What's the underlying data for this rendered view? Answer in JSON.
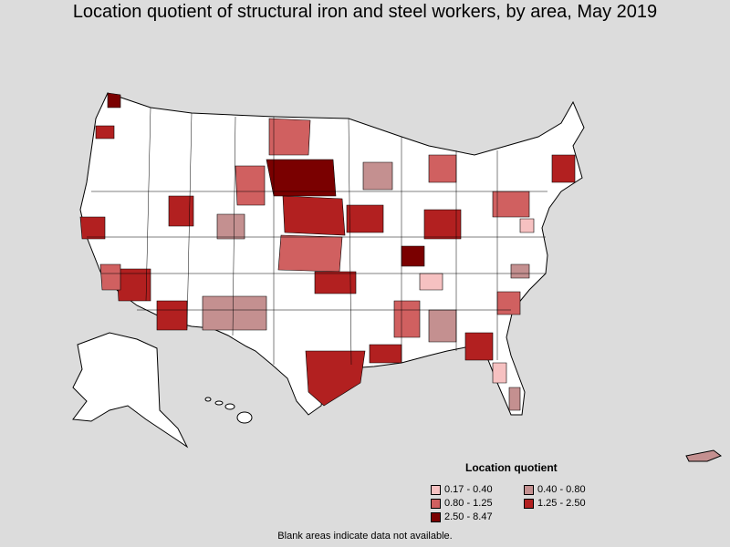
{
  "title": "Location quotient of structural iron and steel workers, by area, May 2019",
  "legend": {
    "title": "Location quotient",
    "items": [
      {
        "label": "0.17 - 0.40",
        "color": "#f6c1c1"
      },
      {
        "label": "0.40 - 0.80",
        "color": "#c49090"
      },
      {
        "label": "0.80 - 1.25",
        "color": "#d06060"
      },
      {
        "label": "1.25 - 2.50",
        "color": "#b22020"
      },
      {
        "label": "2.50 - 8.47",
        "color": "#7a0000"
      }
    ]
  },
  "footnote": "Blank areas indicate data not available.",
  "colors": {
    "background": "#dcdcdc",
    "land": "#ffffff",
    "border": "#000000"
  }
}
